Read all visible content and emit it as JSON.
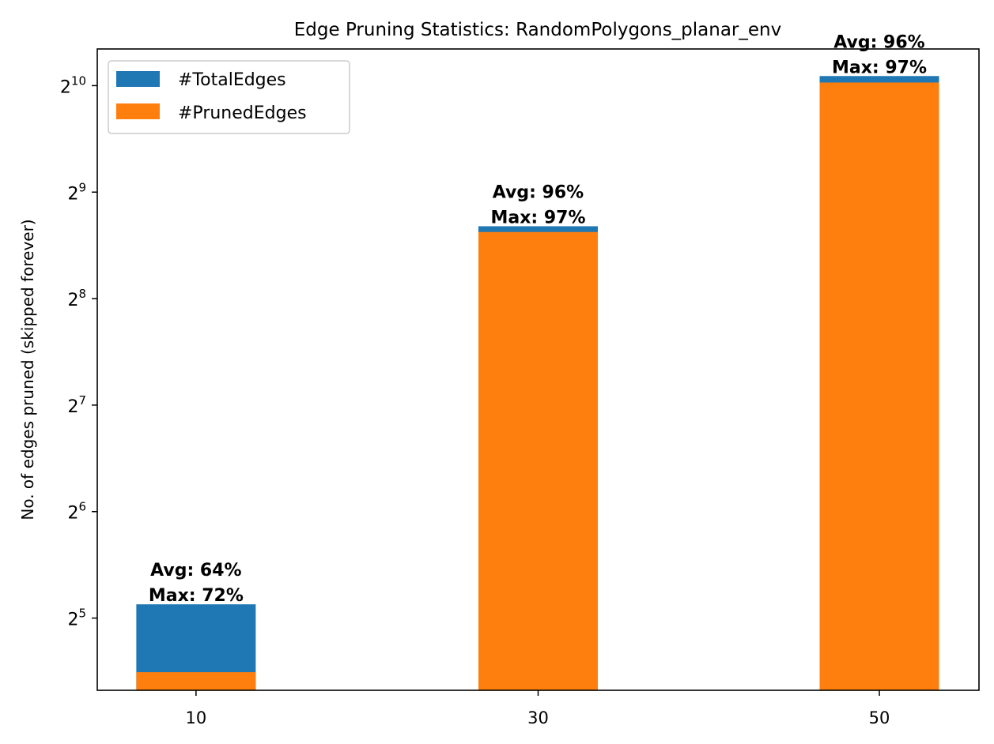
{
  "chart_data": {
    "type": "bar",
    "stacked": true,
    "title": "Edge Pruning Statistics: RandomPolygons_planar_env",
    "xlabel": "",
    "ylabel": "No. of edges pruned (skipped forever)",
    "y_scale": "log2",
    "ylim": [
      20,
      1300
    ],
    "categories": [
      "10",
      "30",
      "50"
    ],
    "y_ticks": [
      {
        "base": "2",
        "exp": "5",
        "value": 32
      },
      {
        "base": "2",
        "exp": "6",
        "value": 64
      },
      {
        "base": "2",
        "exp": "7",
        "value": 128
      },
      {
        "base": "2",
        "exp": "8",
        "value": 256
      },
      {
        "base": "2",
        "exp": "9",
        "value": 512
      },
      {
        "base": "2",
        "exp": "10",
        "value": 1024
      }
    ],
    "series": [
      {
        "name": "#TotalEdges",
        "color": "#1f77b4",
        "values": [
          35,
          410,
          1090
        ]
      },
      {
        "name": "#PrunedEdges",
        "color": "#ff7f0e",
        "values": [
          22.5,
          395,
          1045
        ]
      }
    ],
    "annotations": [
      {
        "avg": "Avg: 64%",
        "max": "Max: 72%"
      },
      {
        "avg": "Avg: 96%",
        "max": "Max: 97%"
      },
      {
        "avg": "Avg: 96%",
        "max": "Max: 97%"
      }
    ],
    "legend_position": "top-left",
    "grid": false
  }
}
